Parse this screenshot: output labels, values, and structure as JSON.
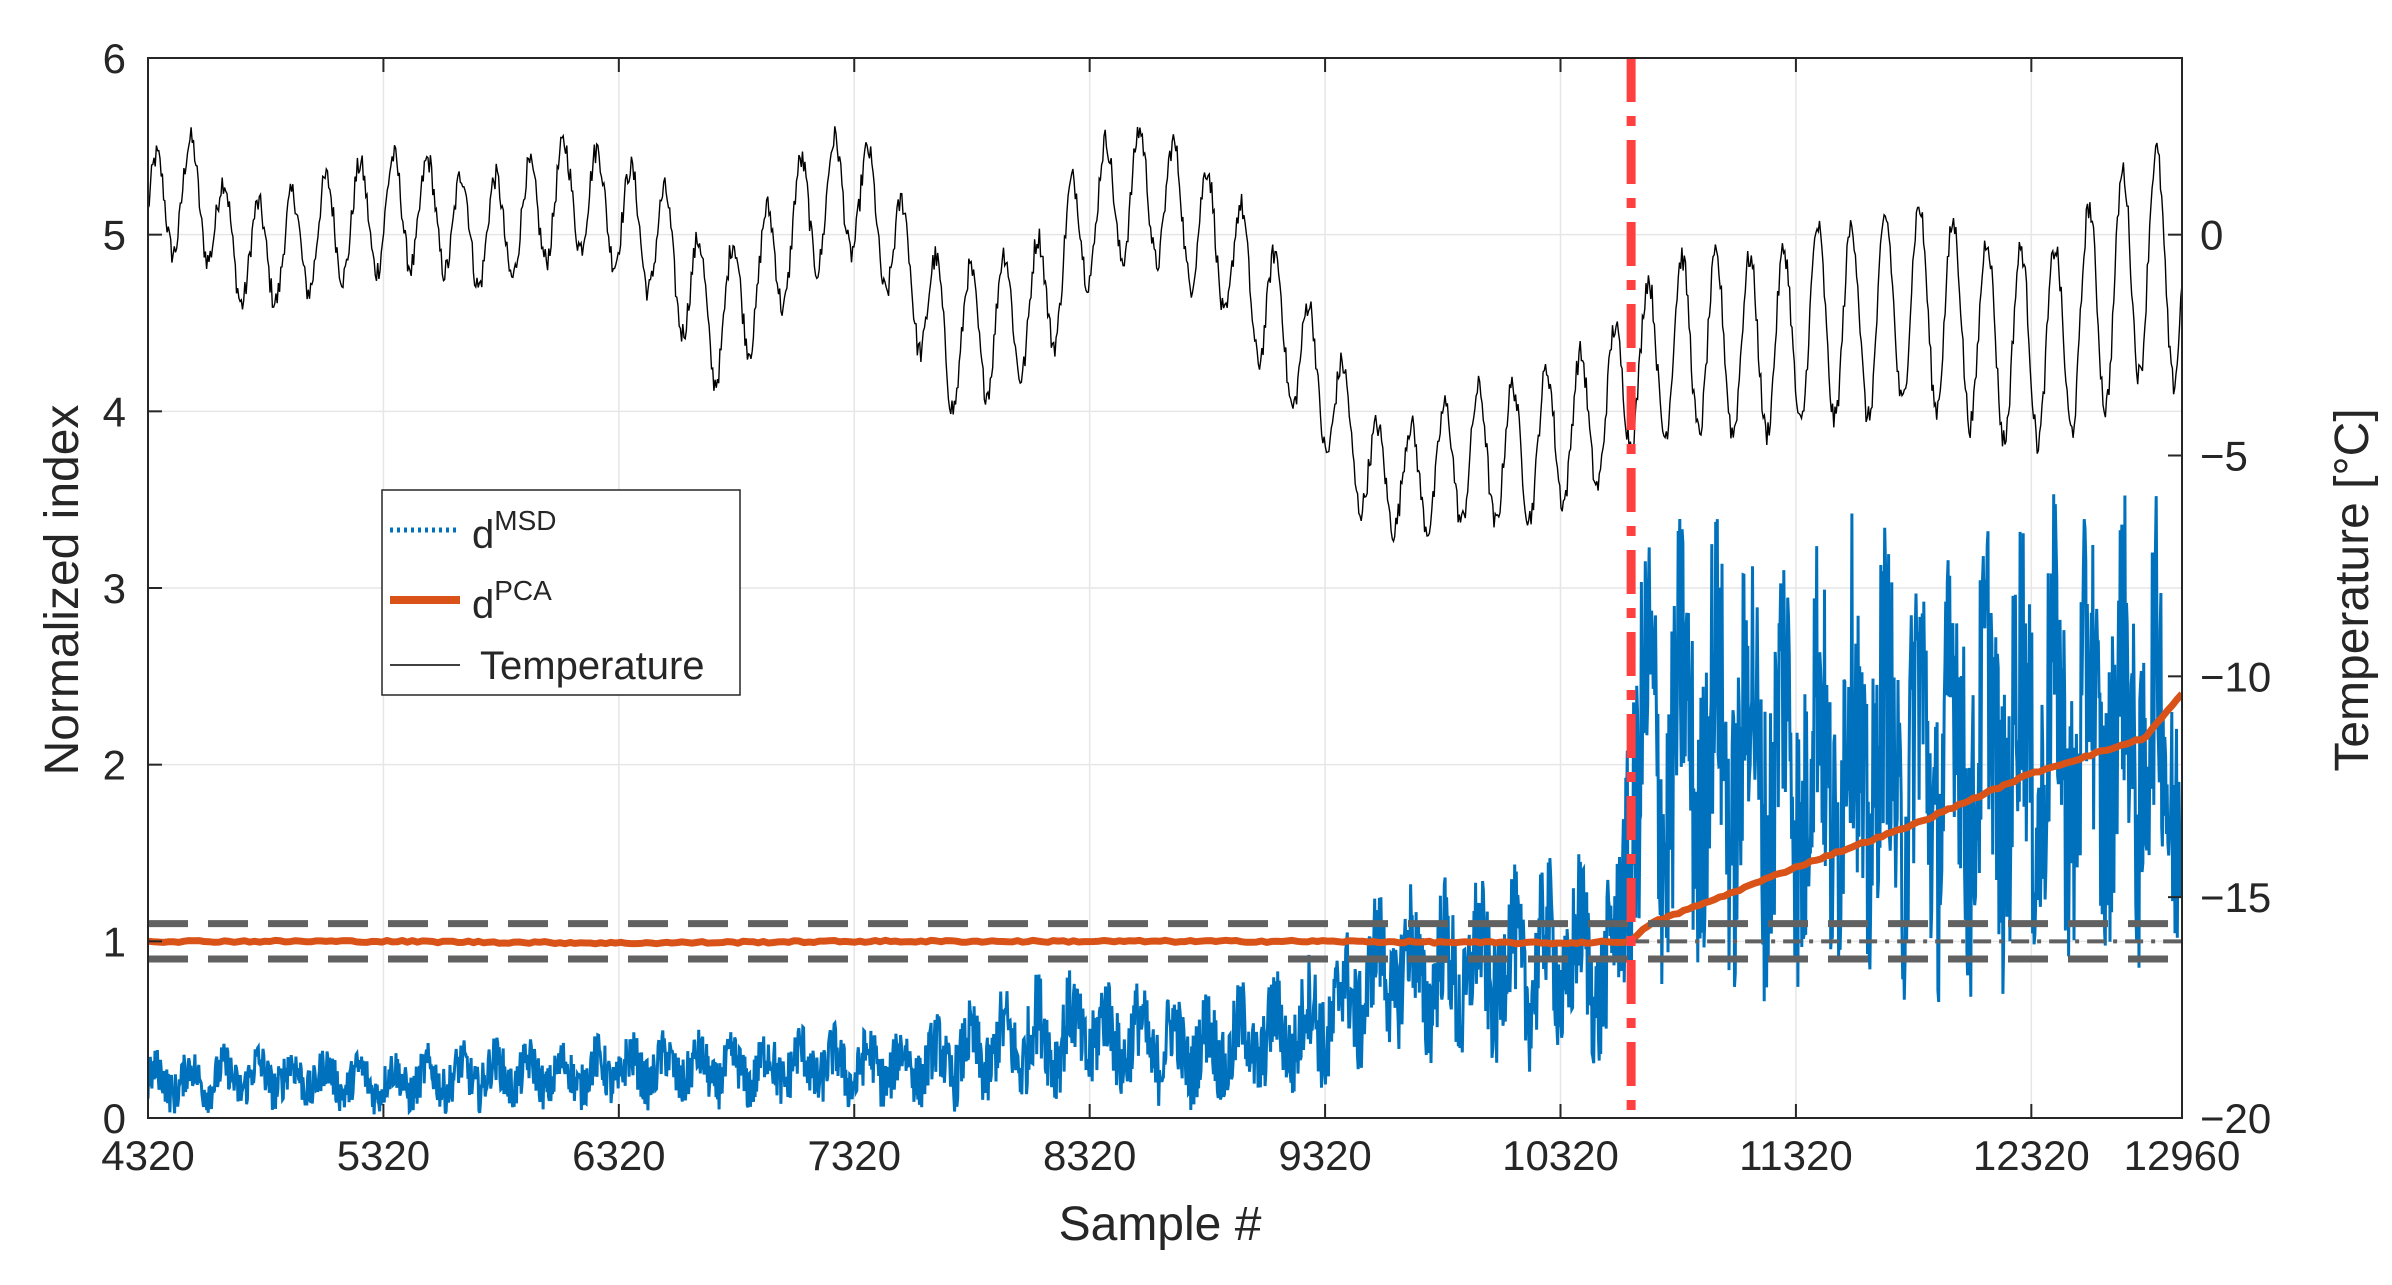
{
  "chart_data": {
    "type": "line",
    "xlabel": "Sample #",
    "ylabel_left": "Normalized index",
    "ylabel_right": "Temperature [°C]",
    "xlim": [
      4320,
      12960
    ],
    "ylim_left": [
      0,
      6
    ],
    "ylim_right": [
      -20,
      4
    ],
    "grid": true,
    "xticks": [
      4320,
      5320,
      6320,
      7320,
      8320,
      9320,
      10320,
      11320,
      12320,
      12960
    ],
    "yticks_left": [
      0,
      1,
      2,
      3,
      4,
      5,
      6
    ],
    "yticks_right": [
      -20,
      -15,
      -10,
      -5,
      0
    ],
    "legend": {
      "placement": "middle-left",
      "entries": [
        {
          "base": "d",
          "sup": "MSD",
          "series": "d_msd",
          "color": "#0072BD",
          "style": "dotted"
        },
        {
          "base": "d",
          "sup": "PCA",
          "series": "d_pca",
          "color": "#D95319",
          "style": "solid-thick"
        },
        {
          "base": "Temperature",
          "sup": "",
          "series": "temperature",
          "color": "#000000",
          "style": "solid-thin"
        }
      ]
    },
    "series": [
      {
        "name": "d_msd",
        "axis": "left",
        "color": "#0072BD",
        "x": [
          4320,
          4560,
          4820,
          5080,
          5320,
          5580,
          5820,
          6080,
          6320,
          6580,
          6820,
          7080,
          7320,
          7580,
          7820,
          8080,
          8320,
          8580,
          8820,
          9080,
          9320,
          9580,
          9820,
          10080,
          10320,
          10560,
          10620,
          10900,
          11320,
          11800,
          12320,
          12800,
          12960
        ],
        "mean": [
          0.2,
          0.22,
          0.24,
          0.22,
          0.2,
          0.23,
          0.25,
          0.24,
          0.27,
          0.28,
          0.26,
          0.3,
          0.28,
          0.3,
          0.35,
          0.45,
          0.48,
          0.42,
          0.38,
          0.45,
          0.55,
          0.85,
          0.8,
          0.85,
          0.9,
          0.85,
          2.0,
          2.1,
          2.0,
          2.0,
          2.1,
          2.2,
          2.0
        ],
        "amplitude": [
          0.15,
          0.15,
          0.16,
          0.15,
          0.15,
          0.16,
          0.17,
          0.16,
          0.18,
          0.18,
          0.18,
          0.2,
          0.2,
          0.2,
          0.25,
          0.3,
          0.3,
          0.28,
          0.28,
          0.3,
          0.35,
          0.4,
          0.45,
          0.45,
          0.5,
          0.5,
          1.1,
          1.1,
          1.1,
          1.1,
          1.1,
          1.1,
          1.0
        ]
      },
      {
        "name": "d_pca",
        "axis": "left",
        "color": "#D95319",
        "x": [
          4320,
          5320,
          6320,
          7320,
          8320,
          9320,
          10320,
          10620,
          10700,
          11000,
          11320,
          11800,
          12320,
          12800,
          12960
        ],
        "y": [
          1.0,
          1.0,
          0.99,
          1.0,
          1.0,
          1.0,
          0.99,
          1.0,
          1.1,
          1.25,
          1.42,
          1.65,
          1.95,
          2.15,
          2.4
        ]
      },
      {
        "name": "temperature",
        "axis": "right",
        "color": "#000000",
        "x": [
          4320,
          4520,
          4720,
          4920,
          5120,
          5320,
          5520,
          5720,
          5920,
          6120,
          6320,
          6520,
          6720,
          6920,
          7120,
          7320,
          7520,
          7720,
          7920,
          8120,
          8320,
          8520,
          8720,
          8920,
          9120,
          9320,
          9520,
          9720,
          9920,
          10120,
          10320,
          10520,
          10620,
          10820,
          11020,
          11220,
          11420,
          11620,
          11820,
          12020,
          12220,
          12420,
          12620,
          12820,
          12960
        ],
        "mean": [
          0.5,
          1.0,
          -0.5,
          -0.3,
          0.2,
          0.5,
          0.5,
          0.0,
          0.3,
          1.0,
          0.5,
          -0.3,
          -2.0,
          -1.0,
          0.5,
          1.0,
          -0.5,
          -2.5,
          -2.0,
          -1.5,
          0.5,
          1.0,
          0.5,
          -0.5,
          -2.0,
          -3.5,
          -5.5,
          -5.5,
          -5.0,
          -5.0,
          -4.5,
          -4.0,
          -3.0,
          -2.5,
          -2.5,
          -2.5,
          -2.0,
          -2.0,
          -1.5,
          -2.0,
          -2.5,
          -2.5,
          -1.5,
          -0.5,
          -1.0
        ],
        "amplitude": [
          1.2,
          1.2,
          1.1,
          1.2,
          1.2,
          1.3,
          1.2,
          1.2,
          1.2,
          1.2,
          1.2,
          1.3,
          1.4,
          1.4,
          1.4,
          1.4,
          1.3,
          1.5,
          1.5,
          1.5,
          1.5,
          1.4,
          1.5,
          1.5,
          1.5,
          1.4,
          1.2,
          1.2,
          1.5,
          1.6,
          1.6,
          1.6,
          1.7,
          2.0,
          2.0,
          2.0,
          2.2,
          2.2,
          2.2,
          2.2,
          2.2,
          2.2,
          2.5,
          2.5,
          2.5
        ]
      }
    ],
    "reference_lines": [
      {
        "orientation": "horizontal",
        "axis": "left",
        "value": 1.1,
        "style": "dashed",
        "color": "#616161"
      },
      {
        "orientation": "horizontal",
        "axis": "left",
        "value": 0.9,
        "style": "dashed",
        "color": "#616161"
      },
      {
        "orientation": "horizontal",
        "axis": "left",
        "value": 1.0,
        "from_x": 10620,
        "style": "dashdot",
        "color": "#616161"
      },
      {
        "orientation": "vertical",
        "value": 10620,
        "style": "dashdot",
        "color": "#FF4040"
      }
    ]
  }
}
